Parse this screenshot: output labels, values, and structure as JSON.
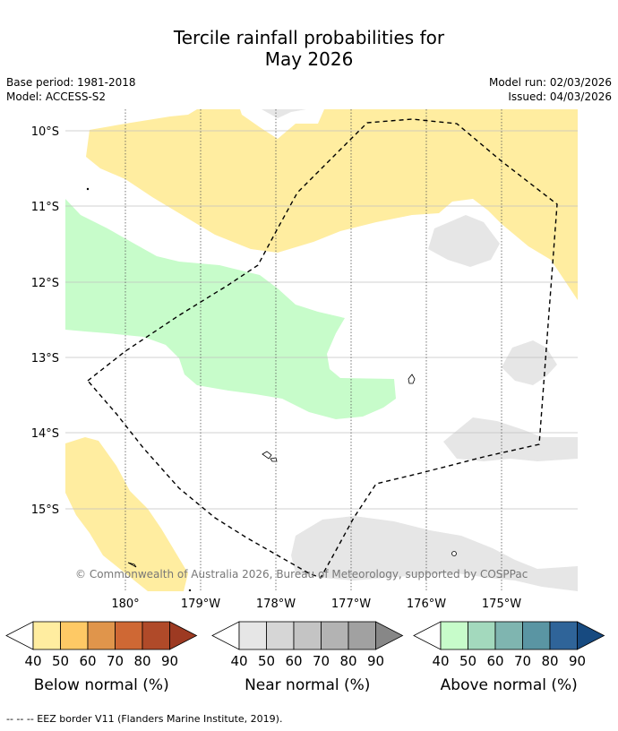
{
  "title_line1": "Tercile rainfall probabilities for",
  "title_line2": "May 2026",
  "base_period": "Base period: 1981-2018",
  "model": "Model: ACCESS-S2",
  "model_run": "Model run: 02/03/2026",
  "issued": "Issued: 04/03/2026",
  "copyright": "© Commonwealth of Australia 2026, Bureau of Meteorology, supported by COSPPac",
  "lat_labels": [
    "10°S",
    "11°S",
    "12°S",
    "13°S",
    "14°S",
    "15°S"
  ],
  "lon_labels": [
    "180°",
    "179°W",
    "178°W",
    "177°W",
    "176°W",
    "175°W"
  ],
  "legends": [
    {
      "title": "Below normal (%)",
      "ticks": [
        "40",
        "50",
        "60",
        "70",
        "80",
        "90"
      ],
      "colors": [
        "#ffffff",
        "#ffeda0",
        "#fec965",
        "#e0954b",
        "#cf6834",
        "#b04a29",
        "#9d3a22"
      ]
    },
    {
      "title": "Near normal (%)",
      "ticks": [
        "40",
        "50",
        "60",
        "70",
        "80",
        "90"
      ],
      "colors": [
        "#ffffff",
        "#e6e6e6",
        "#d6d6d6",
        "#c4c4c4",
        "#b3b3b3",
        "#a1a1a1",
        "#878787"
      ]
    },
    {
      "title": "Above normal (%)",
      "ticks": [
        "40",
        "50",
        "60",
        "70",
        "80",
        "90"
      ],
      "colors": [
        "#ffffff",
        "#c7fcca",
        "#a3d9bd",
        "#7fb5b0",
        "#5a95a3",
        "#2f6499",
        "#174a80"
      ]
    }
  ],
  "footnote": "--  --  -- EEZ border V11 (Flanders Marine Institute, 2019).",
  "colors": {
    "below": "#ffeda0",
    "near": "#e6e6e6",
    "above": "#c7fcca"
  }
}
